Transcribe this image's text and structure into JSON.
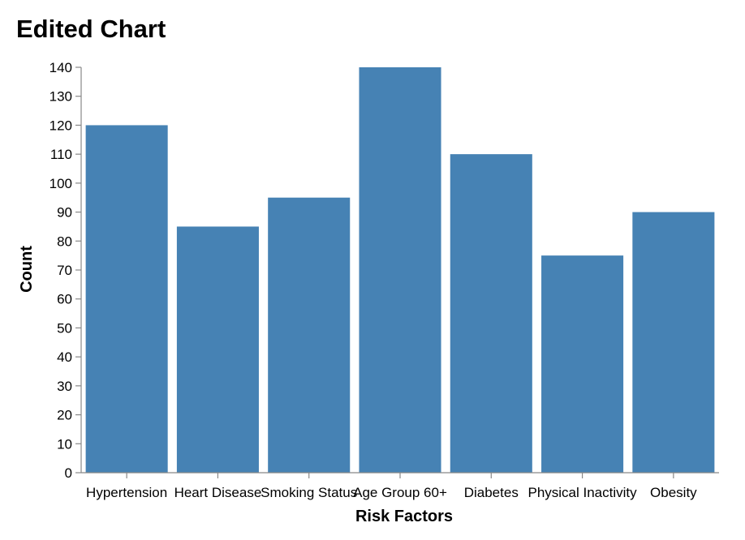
{
  "chart_data": {
    "type": "bar",
    "title": "Edited Chart",
    "xlabel": "Risk Factors",
    "ylabel": "Count",
    "categories": [
      "Hypertension",
      "Heart Disease",
      "Smoking Status",
      "Age Group 60+",
      "Diabetes",
      "Physical Inactivity",
      "Obesity"
    ],
    "values": [
      120,
      85,
      95,
      140,
      110,
      75,
      90
    ],
    "ylim": [
      0,
      140
    ],
    "yticks": [
      0,
      10,
      20,
      30,
      40,
      50,
      60,
      70,
      80,
      90,
      100,
      110,
      120,
      130,
      140
    ],
    "bar_color": "#4682b4",
    "grid": false,
    "legend": "none"
  }
}
